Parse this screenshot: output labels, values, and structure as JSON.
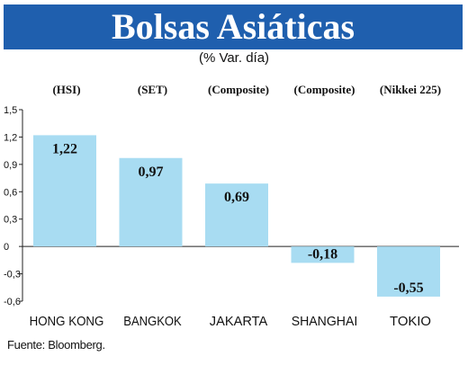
{
  "chart_data": {
    "type": "bar",
    "title": "Bolsas Asiáticas",
    "subtitle": "(% Var. día)",
    "categories": [
      "HONG KONG",
      "BANGKOK",
      "JAKARTA",
      "SHANGHAI",
      "TOKIO"
    ],
    "index_labels": [
      "(HSI)",
      "(SET)",
      "(Composite)",
      "(Composite)",
      "(Nikkei 225)"
    ],
    "values": [
      1.22,
      0.97,
      0.69,
      -0.18,
      -0.55
    ],
    "value_labels": [
      "1,22",
      "0,97",
      "0,69",
      "-0,18",
      "-0,55"
    ],
    "ylim": [
      -0.6,
      1.5
    ],
    "yticks": [
      1.5,
      1.2,
      0.9,
      0.6,
      0.3,
      0,
      -0.3,
      -0.6
    ],
    "ytick_labels": [
      "1,5",
      "1,2",
      "0,9",
      "0,6",
      "0,3",
      "0",
      "-0,3",
      "-0,6"
    ],
    "xlabel": "",
    "ylabel": "",
    "grid": false,
    "colors": {
      "bar": "#a8dcf2",
      "title_bg": "#1f5fae",
      "title_text": "#ffffff",
      "axis": "#222222"
    }
  },
  "source": "Fuente: Bloomberg."
}
